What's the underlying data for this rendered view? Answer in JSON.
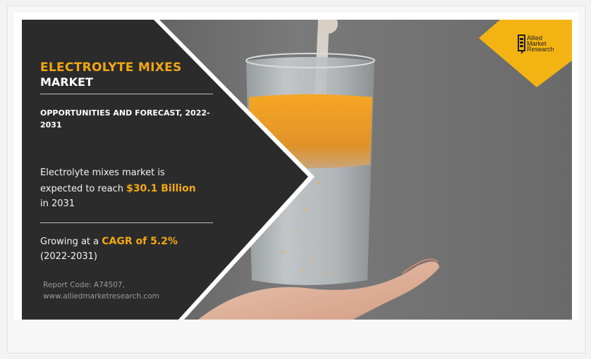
{
  "banner": {
    "title_line1": "ELECTROLYTE MIXES",
    "title_line2": "MARKET",
    "subheading": "OPPORTUNITIES AND FORECAST, 2022-2031",
    "stat1_prefix": "Electrolyte mixes market is",
    "stat1_mid": "expected to reach ",
    "stat1_value": "$30.1 Billion",
    "stat1_suffix": "in 2031",
    "stat2_prefix": "Growing at a ",
    "stat2_value": "CAGR of 5.2%",
    "stat2_suffix": "(2022-2031)",
    "report_code": "Report Code: A74507,",
    "website": "www.alliedmarketresearch.com",
    "image_description": "Hand holding a glass of water with orange electrolyte powder being poured in"
  },
  "logo": {
    "line1": "Allied",
    "line2": "Market",
    "line3": "Research"
  },
  "colors": {
    "accent": "#f3a813",
    "panel": "#2b2b2b",
    "text_light": "#ffffff"
  }
}
